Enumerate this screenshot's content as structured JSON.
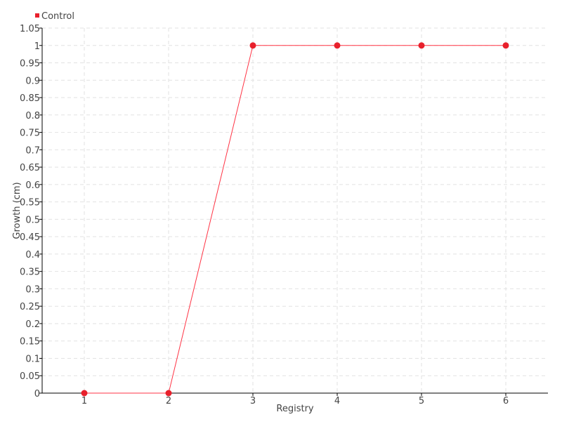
{
  "chart_data": {
    "type": "line",
    "title": "",
    "xlabel": "Registry",
    "ylabel": "Growth (cm)",
    "categories": [
      "1",
      "2",
      "3",
      "4",
      "5",
      "6"
    ],
    "series": [
      {
        "name": "Control",
        "color": "#e8202c",
        "values": [
          0,
          0,
          1,
          1,
          1,
          1
        ]
      }
    ],
    "ylim": [
      0,
      1.05
    ],
    "yticks": [
      "0",
      "0.05",
      "0.1",
      "0.15",
      "0.2",
      "0.25",
      "0.3",
      "0.35",
      "0.4",
      "0.45",
      "0.5",
      "0.55",
      "0.6",
      "0.65",
      "0.7",
      "0.75",
      "0.8",
      "0.85",
      "0.9",
      "0.95",
      "1",
      "1.05"
    ],
    "grid": true,
    "legend": "top-left"
  }
}
